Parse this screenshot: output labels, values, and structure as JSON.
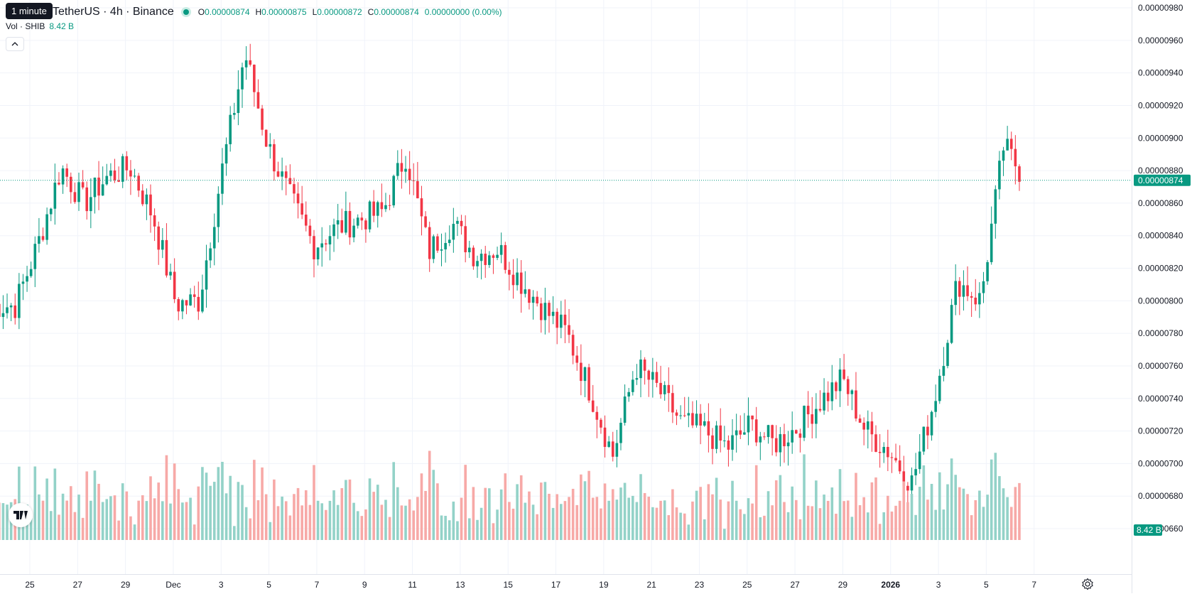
{
  "header": {
    "interval_tooltip": "1 minute",
    "symbol_title": "TetherUS · 4h · Binance",
    "ohlc": [
      {
        "key": "O",
        "value": "0.00000874"
      },
      {
        "key": "H",
        "value": "0.00000875"
      },
      {
        "key": "L",
        "value": "0.00000872"
      },
      {
        "key": "C",
        "value": "0.00000874"
      }
    ],
    "change": "0.00000000 (0.00%)",
    "volume_label": "Vol · SHIB",
    "volume_value": "8.42 B"
  },
  "colors": {
    "up": "#089981",
    "down": "#f23645",
    "vol_up": "#93d2c8",
    "vol_down": "#f7a9a7",
    "grid": "#f0f3fa"
  },
  "price_axis": {
    "ticks": [
      "0.00000980",
      "0.00000960",
      "0.00000940",
      "0.00000920",
      "0.00000900",
      "0.00000880",
      "0.00000860",
      "0.00000840",
      "0.00000820",
      "0.00000800",
      "0.00000780",
      "0.00000760",
      "0.00000740",
      "0.00000720",
      "0.00000700",
      "0.00000680",
      "0.00000660"
    ],
    "last_price_label": "0.00000874",
    "volume_label": "8.42 B"
  },
  "time_axis": {
    "ticks": [
      "25",
      "27",
      "29",
      "Dec",
      "3",
      "5",
      "7",
      "9",
      "11",
      "13",
      "15",
      "17",
      "19",
      "21",
      "23",
      "25",
      "27",
      "29",
      "2026",
      "3",
      "5",
      "7"
    ]
  },
  "chart_data": {
    "type": "candlestick",
    "title": "TetherUS · 4h · Binance",
    "interval": "4h",
    "ylim": [
      6.58e-06,
      9.82e-06
    ],
    "last_price": 8.74e-06,
    "candles_per_day": 6,
    "start_day": "Nov 23",
    "key_points": [
      {
        "t": "Nov 24",
        "close": 7.97e-06
      },
      {
        "t": "Nov 25",
        "close": 8.35e-06
      },
      {
        "t": "Nov 26",
        "close": 8.82e-06
      },
      {
        "t": "Nov 27",
        "close": 8.6e-06
      },
      {
        "t": "Nov 28",
        "close": 8.76e-06
      },
      {
        "t": "Nov 29",
        "close": 8.82e-06
      },
      {
        "t": "Nov 30",
        "close": 8.52e-06
      },
      {
        "t": "Dec 1",
        "close": 7.98e-06
      },
      {
        "t": "Dec 2",
        "close": 8e-06
      },
      {
        "t": "Dec 3",
        "close": 8.8e-06
      },
      {
        "t": "Dec 3 high",
        "close": 9.52e-06
      },
      {
        "t": "Dec 4",
        "close": 8.95e-06
      },
      {
        "t": "Dec 5",
        "close": 8.62e-06
      },
      {
        "t": "Dec 6",
        "close": 8.34e-06
      },
      {
        "t": "Dec 7",
        "close": 8.45e-06
      },
      {
        "t": "Dec 8",
        "close": 8.5e-06
      },
      {
        "t": "Dec 9",
        "close": 8.55e-06
      },
      {
        "t": "Dec 10",
        "close": 8.9e-06
      },
      {
        "t": "Dec 11",
        "close": 8.3e-06
      },
      {
        "t": "Dec 12",
        "close": 8.48e-06
      },
      {
        "t": "Dec 13",
        "close": 8.28e-06
      },
      {
        "t": "Dec 14",
        "close": 8.32e-06
      },
      {
        "t": "Dec 15",
        "close": 8.12e-06
      },
      {
        "t": "Dec 16",
        "close": 7.95e-06
      },
      {
        "t": "Dec 17",
        "close": 7.8e-06
      },
      {
        "t": "Dec 18",
        "close": 7.45e-06
      },
      {
        "t": "Dec 19",
        "close": 7.05e-06
      },
      {
        "t": "Dec 20",
        "close": 7.6e-06
      },
      {
        "t": "Dec 21",
        "close": 7.45e-06
      },
      {
        "t": "Dec 22",
        "close": 7.25e-06
      },
      {
        "t": "Dec 23",
        "close": 7.2e-06
      },
      {
        "t": "Dec 24",
        "close": 7.1e-06
      },
      {
        "t": "Dec 25",
        "close": 7.24e-06
      },
      {
        "t": "Dec 26",
        "close": 7.12e-06
      },
      {
        "t": "Dec 27",
        "close": 7.22e-06
      },
      {
        "t": "Dec 28",
        "close": 7.38e-06
      },
      {
        "t": "Dec 29",
        "close": 7.52e-06
      },
      {
        "t": "Dec 30",
        "close": 7.2e-06
      },
      {
        "t": "Dec 31",
        "close": 7.08e-06
      },
      {
        "t": "Jan 1",
        "close": 6.88e-06
      },
      {
        "t": "Jan 2",
        "close": 7.4e-06
      },
      {
        "t": "Jan 3",
        "close": 8.12e-06
      },
      {
        "t": "Jan 4",
        "close": 8e-06
      },
      {
        "t": "Jan 5",
        "close": 8.95e-06
      },
      {
        "t": "Jan 5 last",
        "close": 8.74e-06
      }
    ]
  }
}
